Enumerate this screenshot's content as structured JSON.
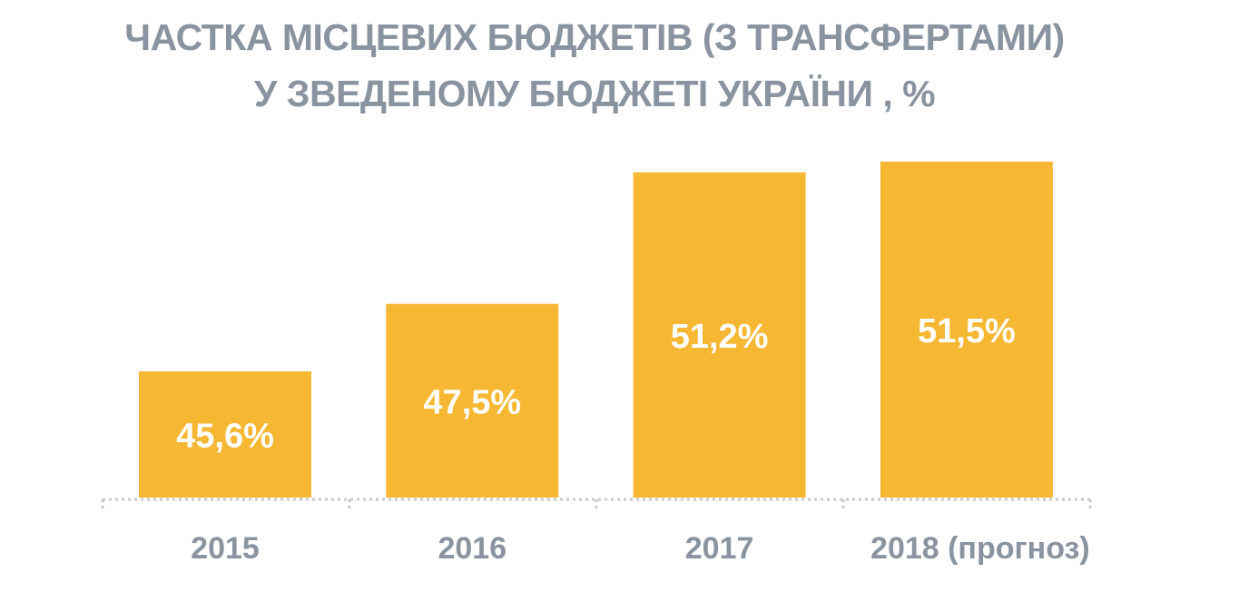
{
  "chart_data": {
    "type": "bar",
    "title_line1": "ЧАСТКА МІСЦЕВИХ БЮДЖЕТІВ (З ТРАНСФЕРТАМИ)",
    "title_line2": "У ЗВЕДЕНОМУ БЮДЖЕТІ УКРАЇНИ , %",
    "categories": [
      "2015",
      "2016",
      "2017",
      "2018 (прогноз)"
    ],
    "values": [
      45.6,
      47.5,
      51.2,
      51.5
    ],
    "labels": [
      "45,6%",
      "47,5%",
      "51,2%",
      "51,5%"
    ],
    "xlabel": "",
    "ylabel": "",
    "ylim": [
      42.05,
      52
    ],
    "grid": false,
    "colors": {
      "bar": "#F6B733",
      "text": "#8994a0",
      "label": "#ffffff",
      "axis": "#c8c8c8"
    }
  }
}
